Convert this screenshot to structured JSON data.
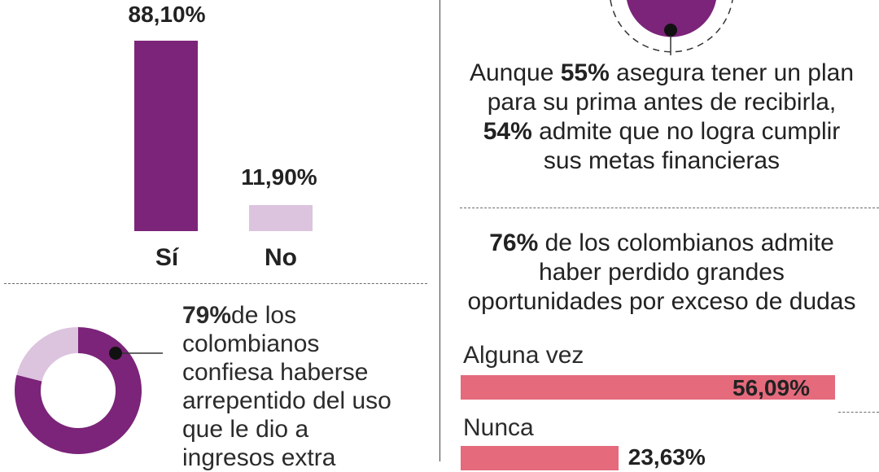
{
  "chart_data": [
    {
      "type": "bar",
      "categories": [
        "Sí",
        "No"
      ],
      "values": [
        88.1,
        11.9
      ],
      "value_labels": [
        "88,10%",
        "11,90%"
      ],
      "colors": [
        "#7b2479",
        "#dcc3de"
      ],
      "ylim": [
        0,
        100
      ]
    },
    {
      "type": "pie",
      "labels": [
        "79%",
        "21%"
      ],
      "values": [
        79,
        21
      ],
      "colors": [
        "#7b2479",
        "#dcc3de"
      ]
    },
    {
      "type": "bar",
      "orientation": "horizontal",
      "categories": [
        "Alguna vez",
        "Nunca"
      ],
      "values": [
        56.09,
        23.63
      ],
      "value_labels": [
        "56,09%",
        "23,63%"
      ],
      "colors": [
        "#e46a7c",
        "#e46a7c"
      ]
    }
  ],
  "donut_text": {
    "highlight": "79%",
    "lines": [
      "de los",
      "colombianos",
      "confiesa haberse",
      "arrepentido del uso",
      "que le dio a",
      "ingresos extra"
    ]
  },
  "plan_text": {
    "l1_pre": "Aunque ",
    "l1_bold": "55%",
    "l1_post": " asegura tener un plan",
    "l2": "para su prima antes de recibirla,",
    "l3_bold": "54%",
    "l3_post": " admite que no logra cumplir",
    "l4": "sus metas financieras"
  },
  "doubts_text": {
    "l1_bold": "76%",
    "l1_post": " de los colombianos admite",
    "l2": "haber perdido grandes",
    "l3": "oportunidades por exceso de dudas"
  },
  "colors": {
    "purple": "#7b2479",
    "lilac": "#dcc3de",
    "pink": "#e46a7c"
  }
}
